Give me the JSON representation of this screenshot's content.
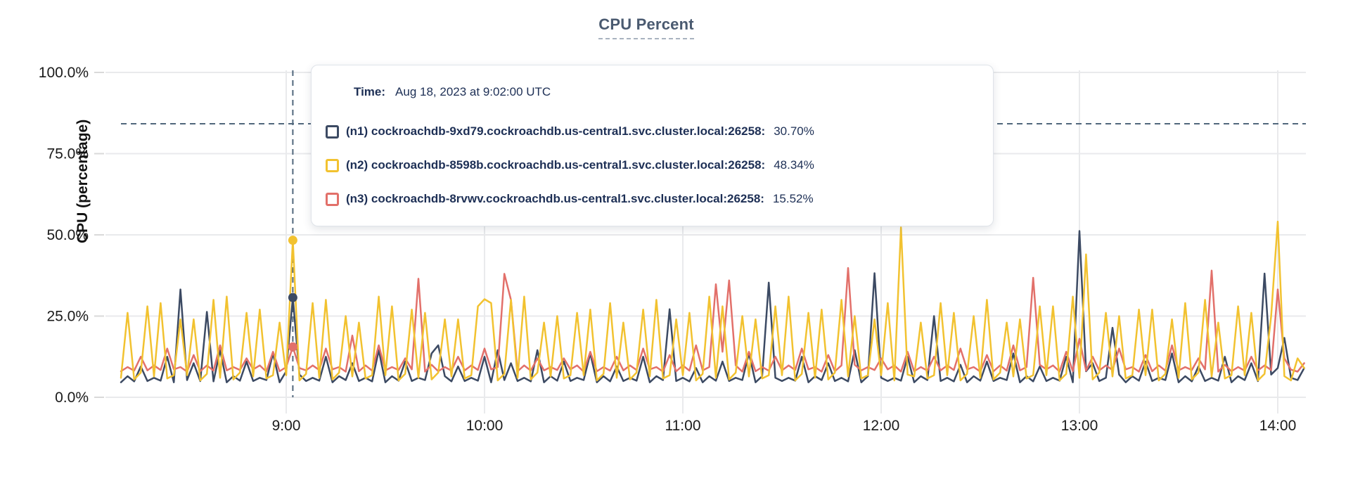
{
  "header": {
    "title": "CPU Percent"
  },
  "y_axis": {
    "title": "CPU (percentage)",
    "ticks": [
      {
        "label": "0.0%",
        "value": 0
      },
      {
        "label": "25.0%",
        "value": 25
      },
      {
        "label": "50.0%",
        "value": 50
      },
      {
        "label": "75.0%",
        "value": 75
      },
      {
        "label": "100.0%",
        "value": 100
      }
    ]
  },
  "x_axis": {
    "ticks": [
      {
        "label": "9:00",
        "minutes": 540
      },
      {
        "label": "10:00",
        "minutes": 600
      },
      {
        "label": "11:00",
        "minutes": 660
      },
      {
        "label": "12:00",
        "minutes": 720
      },
      {
        "label": "13:00",
        "minutes": 780
      },
      {
        "label": "14:00",
        "minutes": 840
      }
    ]
  },
  "tooltip": {
    "time_label": "Time:",
    "time_value": "Aug 18, 2023 at 9:02:00 UTC",
    "rows": [
      {
        "label": "(n1) cockroachdb-9xd79.cockroachdb.us-central1.svc.cluster.local:26258:",
        "value": "30.70%",
        "color": "#3c4a63"
      },
      {
        "label": "(n2) cockroachdb-8598b.cockroachdb.us-central1.svc.cluster.local:26258:",
        "value": "48.34%",
        "color": "#f2c230"
      },
      {
        "label": "(n3) cockroachdb-8rvwv.cockroachdb.us-central1.svc.cluster.local:26258:",
        "value": "15.52%",
        "color": "#e2706a"
      }
    ]
  },
  "hover": {
    "minutes": 542,
    "crosshair_y_percent": 84.2,
    "point_values": [
      30.7,
      48.34,
      15.52
    ]
  },
  "colors": {
    "grid": "#e9eaec",
    "tick_mark": "#d9d9d9",
    "crosshair": "#51677c",
    "axis_text": "#1a1a1a"
  },
  "chart_data": {
    "type": "line",
    "title": "CPU Percent",
    "xlabel": "",
    "ylabel": "CPU (percentage)",
    "ylim": [
      0,
      100
    ],
    "grid": true,
    "legend_position": "tooltip",
    "x_start_minutes": 490,
    "x_step_minutes": 2,
    "x_tick_labels": [
      "9:00",
      "10:00",
      "11:00",
      "12:00",
      "13:00",
      "14:00"
    ],
    "y_tick_labels": [
      "0.0%",
      "25.0%",
      "50.0%",
      "75.0%",
      "100.0%"
    ],
    "hover_time": "Aug 18, 2023 at 9:02:00 UTC",
    "series": [
      {
        "name": "(n1) cockroachdb-9xd79.cockroachdb.us-central1.svc.cluster.local:26258",
        "color": "#3c4a63",
        "hover_value": 30.7,
        "values": [
          4.6,
          6.5,
          4.9,
          9.5,
          5.0,
          6.0,
          5.1,
          12.5,
          4.6,
          33.2,
          5.3,
          10.5,
          5.0,
          26.3,
          4.9,
          14.5,
          4.6,
          6.5,
          5.1,
          11.0,
          5.0,
          6.0,
          5.3,
          13.5,
          4.6,
          8.0,
          30.7,
          7.0,
          5.0,
          6.0,
          5.1,
          12.5,
          4.6,
          6.5,
          5.3,
          10.5,
          5.0,
          6.0,
          4.9,
          14.5,
          4.6,
          6.5,
          5.1,
          11.0,
          5.0,
          6.0,
          5.3,
          13.5,
          16.0,
          6.5,
          4.9,
          9.5,
          5.0,
          6.0,
          5.1,
          12.5,
          4.6,
          14.5,
          5.3,
          10.5,
          5.0,
          6.0,
          4.9,
          14.5,
          4.6,
          6.5,
          5.1,
          11.0,
          5.0,
          6.0,
          5.3,
          13.5,
          4.6,
          6.5,
          4.9,
          9.5,
          5.0,
          6.0,
          5.1,
          12.5,
          4.6,
          6.5,
          5.3,
          27.1,
          5.0,
          6.0,
          4.9,
          9.0,
          4.6,
          6.5,
          5.1,
          11.0,
          5.0,
          6.0,
          5.3,
          13.5,
          4.6,
          6.5,
          35.3,
          6.0,
          5.0,
          6.0,
          5.1,
          12.5,
          4.6,
          6.5,
          5.3,
          10.5,
          5.0,
          6.0,
          4.9,
          14.5,
          4.6,
          6.5,
          38.2,
          6.0,
          5.0,
          6.0,
          5.1,
          12.5,
          4.6,
          6.5,
          5.3,
          25.0,
          5.0,
          6.0,
          4.9,
          10.0,
          4.6,
          6.5,
          5.1,
          11.0,
          5.0,
          6.0,
          5.3,
          13.5,
          4.6,
          6.5,
          4.9,
          9.5,
          5.0,
          6.0,
          5.1,
          12.5,
          4.6,
          51.2,
          8.0,
          10.5,
          5.0,
          6.0,
          21.4,
          7.0,
          4.6,
          6.5,
          5.1,
          11.0,
          5.0,
          6.0,
          5.3,
          13.5,
          4.6,
          6.5,
          4.9,
          9.5,
          5.0,
          6.0,
          5.1,
          12.5,
          4.6,
          6.5,
          5.3,
          10.5,
          5.0,
          38.1,
          7.0,
          9.0,
          18.3,
          6.0,
          5.3,
          9.0
        ]
      },
      {
        "name": "(n2) cockroachdb-8598b.cockroachdb.us-central1.svc.cluster.local:26258",
        "color": "#f2c230",
        "hover_value": 48.34,
        "values": [
          6.0,
          26,
          5.5,
          7.6,
          28,
          6.4,
          29,
          5.8,
          6.8,
          24,
          6.8,
          24,
          5.2,
          7.2,
          30,
          6.0,
          31,
          5.5,
          7.6,
          26,
          6.4,
          27,
          5.8,
          6.8,
          23,
          6.8,
          48.34,
          5.2,
          7.2,
          29,
          6.0,
          30,
          5.5,
          7.6,
          25,
          6.4,
          23,
          5.8,
          6.8,
          31,
          6.8,
          28,
          5.2,
          7.2,
          27,
          6.0,
          26,
          5.5,
          7.6,
          24,
          6.4,
          24,
          5.8,
          6.8,
          28,
          30.2,
          29,
          5.2,
          7.2,
          30,
          6.0,
          31,
          5.5,
          7.6,
          23,
          6.4,
          25,
          5.8,
          6.8,
          26,
          6.8,
          27,
          5.2,
          7.2,
          29,
          6.0,
          23,
          5.5,
          7.6,
          27,
          6.4,
          30,
          5.8,
          6.8,
          24,
          6.8,
          26,
          5.2,
          7.2,
          31,
          6.0,
          28,
          5.5,
          7.6,
          25,
          6.4,
          24,
          5.8,
          6.8,
          28,
          6.8,
          31,
          5.2,
          7.2,
          26,
          6.0,
          27,
          5.5,
          7.6,
          30,
          6.4,
          25,
          5.8,
          6.8,
          24,
          6.8,
          29,
          5.2,
          52.3,
          7.0,
          6.4,
          23,
          5.8,
          6.8,
          29,
          6.8,
          26,
          5.2,
          7.2,
          25,
          6.0,
          30,
          5.5,
          7.6,
          23,
          6.4,
          24,
          5.8,
          6.8,
          28,
          6.8,
          28,
          5.2,
          7.2,
          31,
          6.0,
          44.0,
          5.5,
          7.6,
          26,
          6.4,
          25,
          5.8,
          6.8,
          27,
          6.8,
          27,
          5.2,
          7.2,
          24,
          6.0,
          29,
          5.5,
          7.6,
          30,
          6.4,
          23,
          5.8,
          6.8,
          28,
          6.8,
          26,
          5.2,
          7.2,
          25,
          54.1,
          6.5,
          5.2,
          12.0,
          9.0
        ]
      },
      {
        "name": "(n3) cockroachdb-8rvwv.cockroachdb.us-central1.svc.cluster.local:26258",
        "color": "#e2706a",
        "hover_value": 15.52,
        "values": [
          8.0,
          9.3,
          8.2,
          12.5,
          8.3,
          9.8,
          8.4,
          15.0,
          8.6,
          9.3,
          7.9,
          13.0,
          8.0,
          9.8,
          8.2,
          16.0,
          8.3,
          9.3,
          8.4,
          12.0,
          8.6,
          9.8,
          7.9,
          14.0,
          8.0,
          9.3,
          15.52,
          9.0,
          8.3,
          9.8,
          8.4,
          15.0,
          8.6,
          9.3,
          7.9,
          19.0,
          8.0,
          9.8,
          8.2,
          16.0,
          8.3,
          9.3,
          8.4,
          12.0,
          8.6,
          36.5,
          7.9,
          10.0,
          8.0,
          9.3,
          8.2,
          12.5,
          8.3,
          9.8,
          8.4,
          15.0,
          8.6,
          9.3,
          38.0,
          30.0,
          8.0,
          9.8,
          8.2,
          12.0,
          8.3,
          9.3,
          8.4,
          12.0,
          8.6,
          9.8,
          7.9,
          14.0,
          8.0,
          9.3,
          8.2,
          12.5,
          8.3,
          9.8,
          8.4,
          15.0,
          8.6,
          9.3,
          7.9,
          13.0,
          8.0,
          9.8,
          8.2,
          16.0,
          8.3,
          9.3,
          34.8,
          14.0,
          36.0,
          9.8,
          7.9,
          14.0,
          8.0,
          9.3,
          8.2,
          12.5,
          8.3,
          9.8,
          8.4,
          15.0,
          8.6,
          9.3,
          7.9,
          13.0,
          8.0,
          9.8,
          39.8,
          10.0,
          8.3,
          9.3,
          8.4,
          12.0,
          8.6,
          9.8,
          7.9,
          14.0,
          8.0,
          9.3,
          8.2,
          12.5,
          8.3,
          9.8,
          8.4,
          15.0,
          8.6,
          9.3,
          7.9,
          13.0,
          8.0,
          9.8,
          8.2,
          16.0,
          8.3,
          9.3,
          36.8,
          10.0,
          8.6,
          9.8,
          7.9,
          14.0,
          8.0,
          18.0,
          8.2,
          12.5,
          8.3,
          9.8,
          8.4,
          15.0,
          8.6,
          9.3,
          7.9,
          13.0,
          8.0,
          9.8,
          8.2,
          16.0,
          8.3,
          9.3,
          8.4,
          12.0,
          8.6,
          39.0,
          7.9,
          10.0,
          8.0,
          9.3,
          8.2,
          12.5,
          8.3,
          9.8,
          8.4,
          33.2,
          12.0,
          8.5,
          7.9,
          10.5
        ]
      }
    ]
  }
}
